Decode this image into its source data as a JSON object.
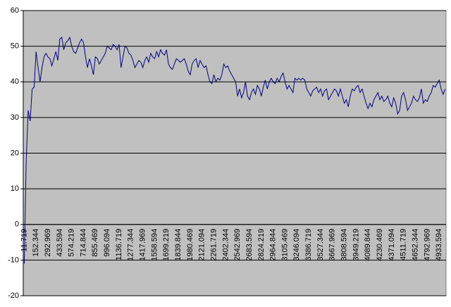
{
  "chart_data": {
    "type": "line",
    "color": "#000080",
    "ylim": [
      -20,
      60
    ],
    "yticks": [
      -20,
      -10,
      0,
      10,
      20,
      30,
      40,
      50,
      60
    ],
    "grid": true,
    "categories": [
      "11.719",
      null,
      null,
      null,
      null,
      null,
      "152.344",
      null,
      null,
      null,
      null,
      null,
      "292.969",
      null,
      null,
      null,
      null,
      null,
      "433.594",
      null,
      null,
      null,
      null,
      null,
      "574.219",
      null,
      null,
      null,
      null,
      null,
      "714.844",
      null,
      null,
      null,
      null,
      null,
      "855.469",
      null,
      null,
      null,
      null,
      null,
      "996.094",
      null,
      null,
      null,
      null,
      null,
      "1136.719",
      null,
      null,
      null,
      null,
      null,
      "1277.344",
      null,
      null,
      null,
      null,
      null,
      "1417.969",
      null,
      null,
      null,
      null,
      null,
      "1558.594",
      null,
      null,
      null,
      null,
      null,
      "1699.219",
      null,
      null,
      null,
      null,
      null,
      "1839.844",
      null,
      null,
      null,
      null,
      null,
      "1980.469",
      null,
      null,
      null,
      null,
      null,
      "2121.094",
      null,
      null,
      null,
      null,
      null,
      "2261.719",
      null,
      null,
      null,
      null,
      null,
      "2402.344",
      null,
      null,
      null,
      null,
      null,
      "2542.969",
      null,
      null,
      null,
      null,
      null,
      "2683.594",
      null,
      null,
      null,
      null,
      null,
      "2824.219",
      null,
      null,
      null,
      null,
      null,
      "2964.844",
      null,
      null,
      null,
      null,
      null,
      "3105.469",
      null,
      null,
      null,
      null,
      null,
      "3246.094",
      null,
      null,
      null,
      null,
      null,
      "3386.719",
      null,
      null,
      null,
      null,
      null,
      "3527.344",
      null,
      null,
      null,
      null,
      null,
      "3667.969",
      null,
      null,
      null,
      null,
      null,
      "3808.594",
      null,
      null,
      null,
      null,
      null,
      "3949.219",
      null,
      null,
      null,
      null,
      null,
      "4089.844",
      null,
      null,
      null,
      null,
      null,
      "4230.469",
      null,
      null,
      null,
      null,
      null,
      "4371.094",
      null,
      null,
      null,
      null,
      null,
      "4511.719",
      null,
      null,
      null,
      null,
      null,
      "4652.344",
      null,
      null,
      null,
      null,
      null,
      "4792.969",
      null,
      null,
      null,
      null,
      null,
      "4933.594",
      null,
      null,
      null
    ],
    "values": [
      -11,
      18,
      32,
      29,
      38,
      38.5,
      48.5,
      44,
      40,
      44,
      47,
      48,
      47,
      46.5,
      44.5,
      46.5,
      48.5,
      46,
      52,
      52.5,
      49,
      51,
      51.5,
      52.5,
      50,
      48.5,
      48,
      49.5,
      51,
      52,
      51,
      47,
      44,
      46.5,
      44.5,
      42,
      47,
      46.5,
      45,
      46,
      47,
      48,
      50,
      49.5,
      49,
      50.5,
      50,
      49,
      50.5,
      44,
      47,
      50,
      49.5,
      48,
      47.5,
      46,
      44,
      45,
      46,
      45.5,
      44,
      46,
      47,
      45.5,
      48,
      47,
      46.5,
      48.5,
      47,
      49,
      48,
      47.5,
      49,
      45,
      44,
      43.5,
      45,
      46.5,
      46,
      45.5,
      46,
      46.5,
      45,
      43,
      42,
      45,
      46,
      46.5,
      44,
      46,
      45,
      44,
      44.5,
      42,
      40,
      39.5,
      42,
      40,
      41,
      40.5,
      42,
      45,
      44,
      44.5,
      43,
      42,
      41,
      40,
      36,
      38,
      35.5,
      37,
      40,
      36,
      35,
      37,
      38,
      36.5,
      39,
      38,
      36,
      38.5,
      40.5,
      38,
      40,
      41,
      40,
      39.5,
      41,
      40,
      41.5,
      42.5,
      40,
      38,
      39,
      38,
      37,
      41,
      40.5,
      41,
      40.5,
      41,
      40.5,
      38,
      37,
      36,
      37.5,
      38,
      38.5,
      37,
      38,
      36,
      37.5,
      38,
      35,
      36,
      37,
      38,
      37.5,
      36,
      38,
      36,
      34,
      35,
      33,
      36,
      38,
      37.5,
      38.5,
      39,
      37,
      38,
      36,
      34,
      32.5,
      34,
      33,
      35,
      36,
      37,
      35,
      36,
      34.5,
      35,
      36,
      34,
      33,
      35.5,
      34,
      31,
      32,
      36,
      37,
      35,
      32,
      33,
      34,
      36,
      35,
      34.5,
      35.5,
      38,
      34,
      35,
      34.5,
      36,
      37,
      39,
      38.5,
      39.5,
      40.5,
      38,
      36.5,
      38
    ]
  }
}
